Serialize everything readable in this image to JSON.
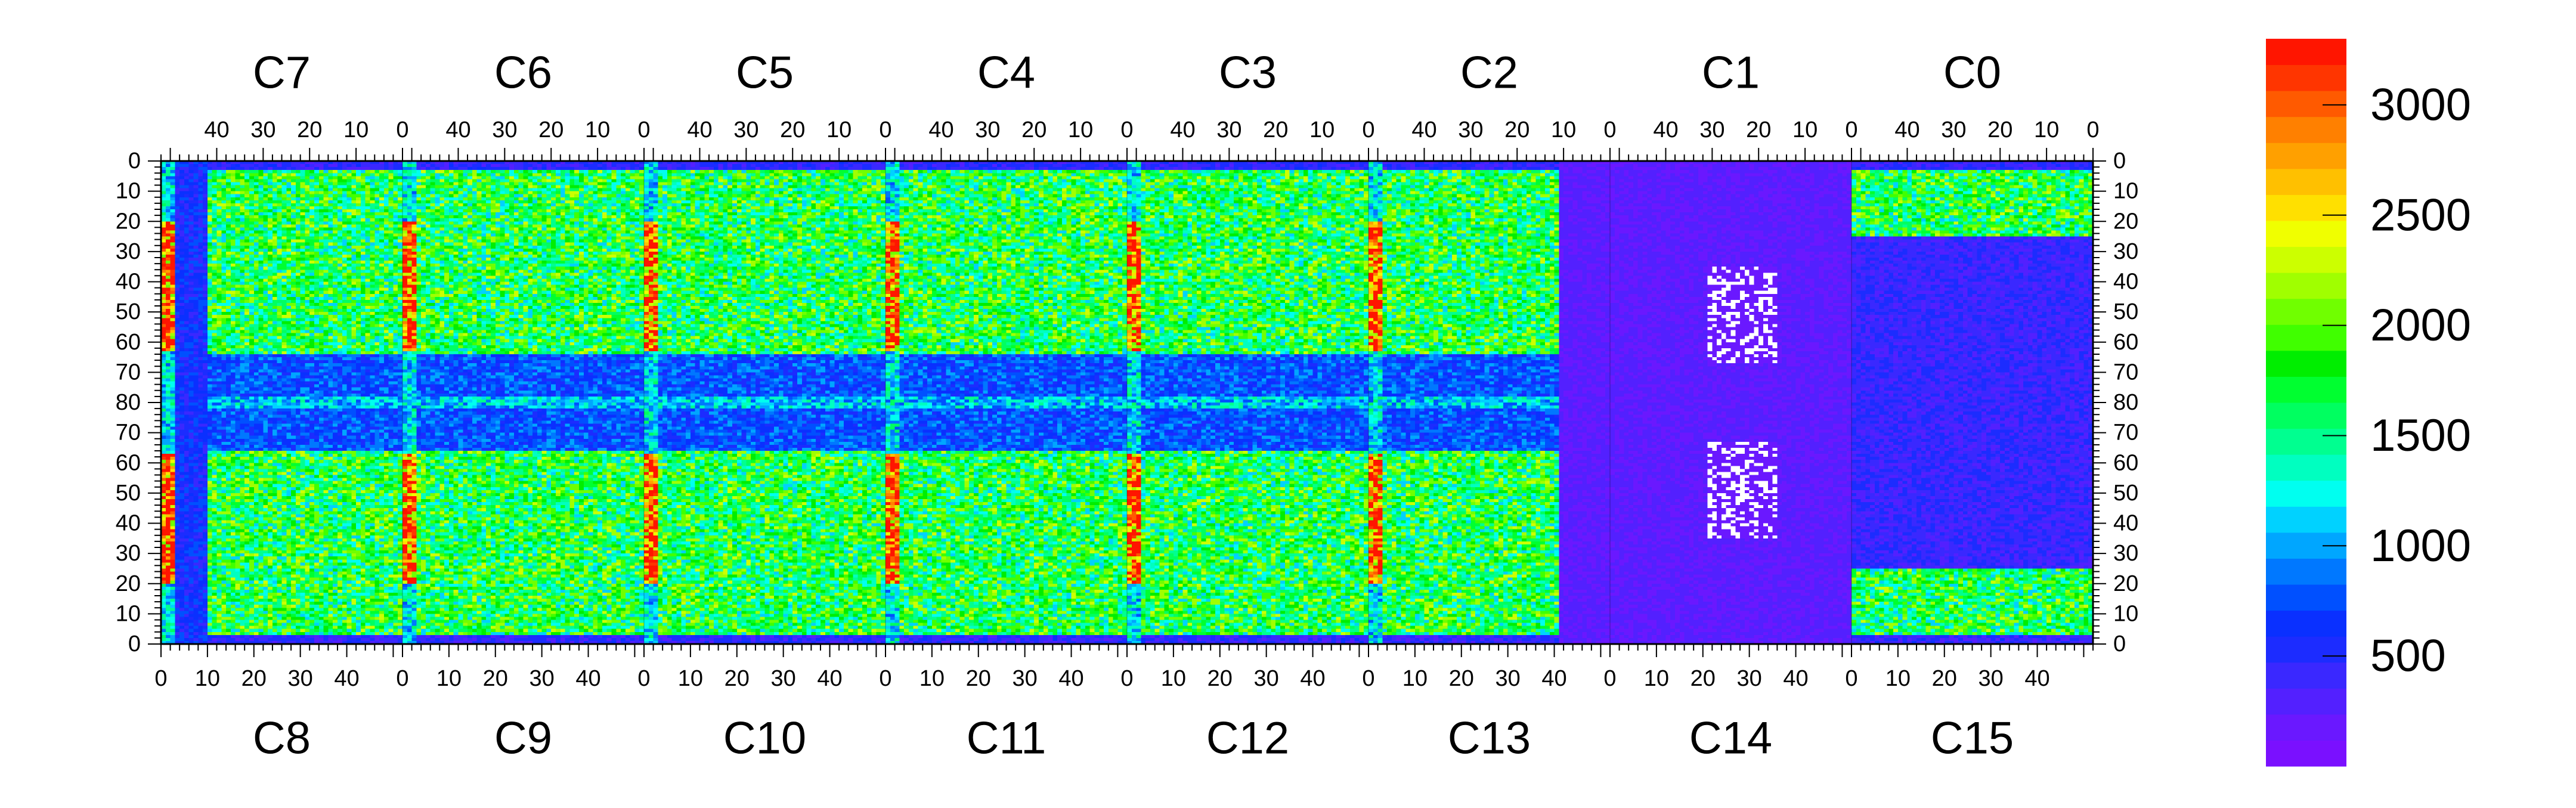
{
  "chart_data": {
    "type": "heatmap",
    "title": "",
    "chips_top": [
      "C7",
      "C6",
      "C5",
      "C4",
      "C3",
      "C2",
      "C1",
      "C0"
    ],
    "chips_bottom": [
      "C8",
      "C9",
      "C10",
      "C11",
      "C12",
      "C13",
      "C14",
      "C15"
    ],
    "top_axis_ticks": [
      "40",
      "30",
      "20",
      "10",
      "0"
    ],
    "bottom_axis_ticks": [
      "0",
      "10",
      "20",
      "30",
      "40"
    ],
    "left_axis_ticks": [
      "0",
      "10",
      "20",
      "30",
      "40",
      "50",
      "60",
      "70",
      "80",
      "70",
      "60",
      "50",
      "40",
      "30",
      "20",
      "10",
      "0"
    ],
    "right_axis_ticks": [
      "0",
      "10",
      "20",
      "30",
      "40",
      "50",
      "60",
      "70",
      "80",
      "70",
      "60",
      "50",
      "40",
      "30",
      "20",
      "10",
      "0"
    ],
    "columns_per_chip": 52,
    "rows_per_half": 80,
    "zrange": [
      0,
      3300
    ],
    "colorbar_ticks": [
      "500",
      "1000",
      "1500",
      "2000",
      "2500",
      "3000"
    ],
    "colorbar_tick_values": [
      500,
      1000,
      1500,
      2000,
      2500,
      3000
    ],
    "palette": [
      "#7a10ff",
      "#6a18ff",
      "#5320ff",
      "#3a28ff",
      "#1c2cff",
      "#0a30ff",
      "#0050ff",
      "#0078ff",
      "#00a6ff",
      "#00d2ff",
      "#00fff0",
      "#00ffc0",
      "#00ff90",
      "#00ff60",
      "#00ff30",
      "#00ee00",
      "#40ff00",
      "#70ff00",
      "#a0ff00",
      "#ccff00",
      "#f0ff00",
      "#ffe000",
      "#ffc000",
      "#ffa000",
      "#ff8000",
      "#ff5a00",
      "#ff3500",
      "#ff1500"
    ],
    "colors": {
      "empty": "#ffffff",
      "axis": "#000000"
    }
  }
}
